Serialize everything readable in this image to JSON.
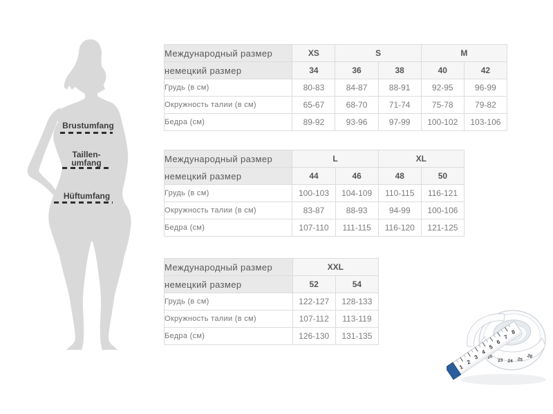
{
  "page": {
    "background": "#ffffff"
  },
  "silhouette": {
    "bust_label": "Brustumfang",
    "waist_label_line1": "Taillen-",
    "waist_label_line2": "umfang",
    "hip_label": "Hüftumfang",
    "fill_color": "#d9d9d9",
    "dash_color": "#2e2e2e"
  },
  "colors": {
    "header_bg": "#e9e9e9",
    "size_header_bg": "#f6f6f6",
    "border": "#dcdcdc",
    "header_text": "#585858",
    "value_text": "#7b7b7b"
  },
  "tables": [
    {
      "header_row_label": "Международный размер",
      "subheader_row_label": "немецкий размер",
      "intl_sizes": [
        {
          "label": "XS",
          "span": 1
        },
        {
          "label": "S",
          "span": 2
        },
        {
          "label": "M",
          "span": 2
        }
      ],
      "german_sizes": [
        "34",
        "36",
        "38",
        "40",
        "42"
      ],
      "rows": [
        {
          "label": "Грудь (в см)",
          "values": [
            "80-83",
            "84-87",
            "88-91",
            "92-95",
            "96-99"
          ]
        },
        {
          "label": "Окружность талии (в см)",
          "values": [
            "65-67",
            "68-70",
            "71-74",
            "75-78",
            "79-82"
          ]
        },
        {
          "label": "Бедра (см)",
          "values": [
            "89-92",
            "93-96",
            "97-99",
            "100-102",
            "103-106"
          ]
        }
      ]
    },
    {
      "header_row_label": "Международный размер",
      "subheader_row_label": "немецкий размер",
      "intl_sizes": [
        {
          "label": "L",
          "span": 2
        },
        {
          "label": "XL",
          "span": 2
        }
      ],
      "german_sizes": [
        "44",
        "46",
        "48",
        "50"
      ],
      "rows": [
        {
          "label": "Грудь (в см)",
          "values": [
            "100-103",
            "104-109",
            "110-115",
            "116-121"
          ]
        },
        {
          "label": "Окружность талии (в см)",
          "values": [
            "83-87",
            "88-93",
            "94-99",
            "100-106"
          ]
        },
        {
          "label": "Бедра (см)",
          "values": [
            "107-110",
            "111-115",
            "116-120",
            "121-125"
          ]
        }
      ]
    },
    {
      "header_row_label": "Международный размер",
      "subheader_row_label": "немецкий размер",
      "intl_sizes": [
        {
          "label": "XXL",
          "span": 2
        }
      ],
      "german_sizes": [
        "52",
        "54"
      ],
      "rows": [
        {
          "label": "Грудь (в см)",
          "values": [
            "122-127",
            "128-133"
          ]
        },
        {
          "label": "Окружность талии (в см)",
          "values": [
            "107-112",
            "113-119"
          ]
        },
        {
          "label": "Бедра (см)",
          "values": [
            "126-130",
            "131-135"
          ]
        }
      ]
    }
  ],
  "tape": {
    "strip_numbers": [
      "1",
      "2",
      "3",
      "4",
      "5",
      "6",
      "7",
      "8"
    ],
    "coil_numbers": [
      "20",
      "23",
      "24",
      "25",
      "26"
    ],
    "tip_color": "#2a5d9c"
  }
}
